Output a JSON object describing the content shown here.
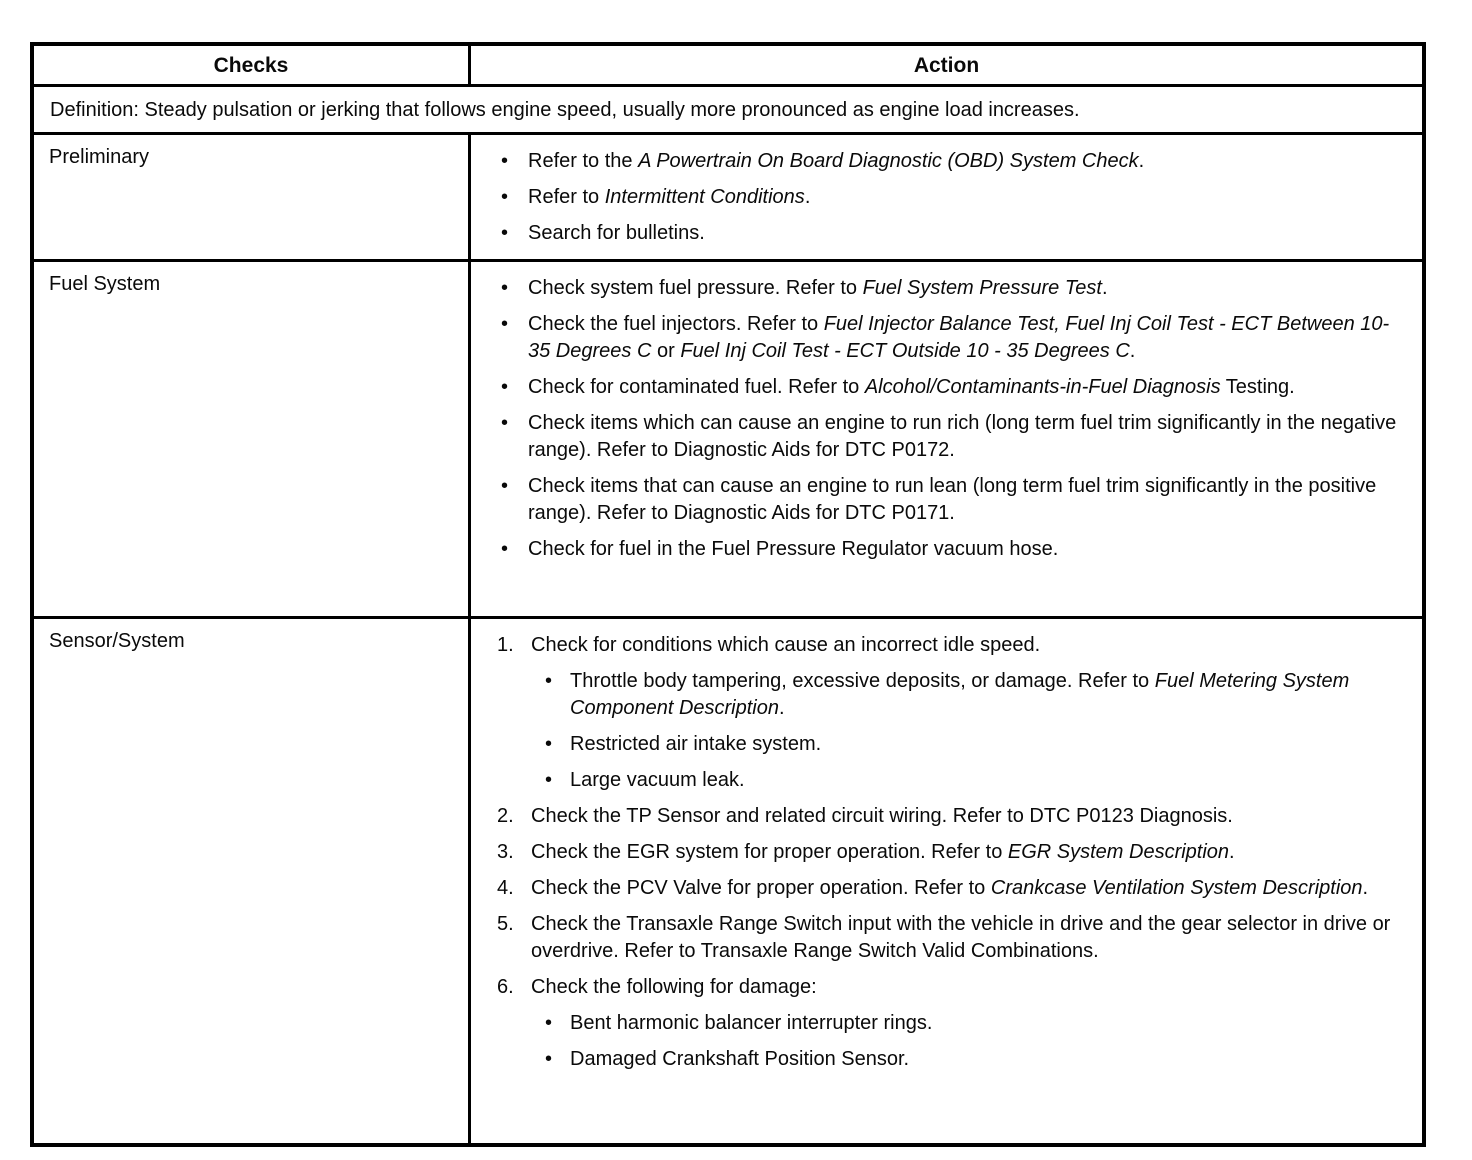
{
  "table": {
    "header": {
      "checks": "Checks",
      "action": "Action"
    },
    "definition": "Definition: Steady pulsation or jerking that follows engine speed, usually more pronounced as engine load increases.",
    "rows": [
      {
        "check": "Preliminary",
        "items": [
          {
            "marker": "•",
            "level": 0,
            "segments": [
              {
                "t": "Refer to the "
              },
              {
                "t": "A Powertrain On Board Diagnostic (OBD) System Check",
                "i": true
              },
              {
                "t": "."
              }
            ]
          },
          {
            "marker": "•",
            "level": 0,
            "segments": [
              {
                "t": "Refer to "
              },
              {
                "t": "Intermittent Conditions",
                "i": true
              },
              {
                "t": "."
              }
            ]
          },
          {
            "marker": "•",
            "level": 0,
            "segments": [
              {
                "t": "Search for bulletins."
              }
            ]
          }
        ]
      },
      {
        "check": "Fuel System",
        "items": [
          {
            "marker": "•",
            "level": 0,
            "segments": [
              {
                "t": "Check system fuel pressure. Refer to "
              },
              {
                "t": "Fuel System Pressure Test",
                "i": true
              },
              {
                "t": "."
              }
            ]
          },
          {
            "marker": "•",
            "level": 0,
            "segments": [
              {
                "t": "Check the fuel injectors. Refer to "
              },
              {
                "t": "Fuel Injector Balance Test, Fuel Inj Coil Test - ECT Between 10-35 Degrees C",
                "i": true
              },
              {
                "t": " or "
              },
              {
                "t": "Fuel Inj Coil Test - ECT Outside 10 - 35 Degrees C",
                "i": true
              },
              {
                "t": "."
              }
            ]
          },
          {
            "marker": "•",
            "level": 0,
            "segments": [
              {
                "t": "Check for contaminated fuel. Refer to "
              },
              {
                "t": "Alcohol/Contaminants-in-Fuel Diagnosis",
                "i": true
              },
              {
                "t": " Testing."
              }
            ]
          },
          {
            "marker": "•",
            "level": 0,
            "segments": [
              {
                "t": "Check items which can cause an engine to run rich (long term fuel trim significantly in the negative range). Refer to Diagnostic Aids for DTC P0172."
              }
            ]
          },
          {
            "marker": "•",
            "level": 0,
            "segments": [
              {
                "t": "Check items that can cause an engine to run lean (long term fuel trim significantly in the positive range). Refer to Diagnostic Aids for DTC P0171."
              }
            ]
          },
          {
            "marker": "•",
            "level": 0,
            "segments": [
              {
                "t": "Check for fuel in the Fuel Pressure Regulator vacuum hose."
              }
            ]
          }
        ]
      },
      {
        "check": "Sensor/System",
        "items": [
          {
            "marker": "1.",
            "level": 0,
            "segments": [
              {
                "t": "Check for conditions which cause an incorrect idle speed."
              }
            ]
          },
          {
            "marker": "•",
            "level": 1,
            "segments": [
              {
                "t": "Throttle body tampering, excessive deposits, or damage. Refer to "
              },
              {
                "t": "Fuel Metering System Component Description",
                "i": true
              },
              {
                "t": "."
              }
            ]
          },
          {
            "marker": "•",
            "level": 1,
            "segments": [
              {
                "t": "Restricted air intake system."
              }
            ]
          },
          {
            "marker": "•",
            "level": 1,
            "segments": [
              {
                "t": "Large vacuum leak."
              }
            ]
          },
          {
            "marker": "2.",
            "level": 0,
            "segments": [
              {
                "t": "Check the TP Sensor and related circuit wiring. Refer to DTC P0123 Diagnosis."
              }
            ]
          },
          {
            "marker": "3.",
            "level": 0,
            "segments": [
              {
                "t": "Check the EGR system for proper operation. Refer to "
              },
              {
                "t": "EGR System Description",
                "i": true
              },
              {
                "t": "."
              }
            ]
          },
          {
            "marker": "4.",
            "level": 0,
            "segments": [
              {
                "t": "Check the PCV Valve for proper operation. Refer to "
              },
              {
                "t": "Crankcase Ventilation System Description",
                "i": true
              },
              {
                "t": "."
              }
            ]
          },
          {
            "marker": "5.",
            "level": 0,
            "segments": [
              {
                "t": "Check the Transaxle Range Switch input with the vehicle in drive and the gear selector in drive or overdrive. Refer to Transaxle Range Switch Valid Combinations."
              }
            ]
          },
          {
            "marker": "6.",
            "level": 0,
            "segments": [
              {
                "t": "Check the following for damage:"
              }
            ]
          },
          {
            "marker": "•",
            "level": 1,
            "segments": [
              {
                "t": "Bent harmonic balancer interrupter rings."
              }
            ]
          },
          {
            "marker": "•",
            "level": 1,
            "segments": [
              {
                "t": "Damaged Crankshaft Position Sensor."
              }
            ]
          }
        ]
      }
    ]
  }
}
